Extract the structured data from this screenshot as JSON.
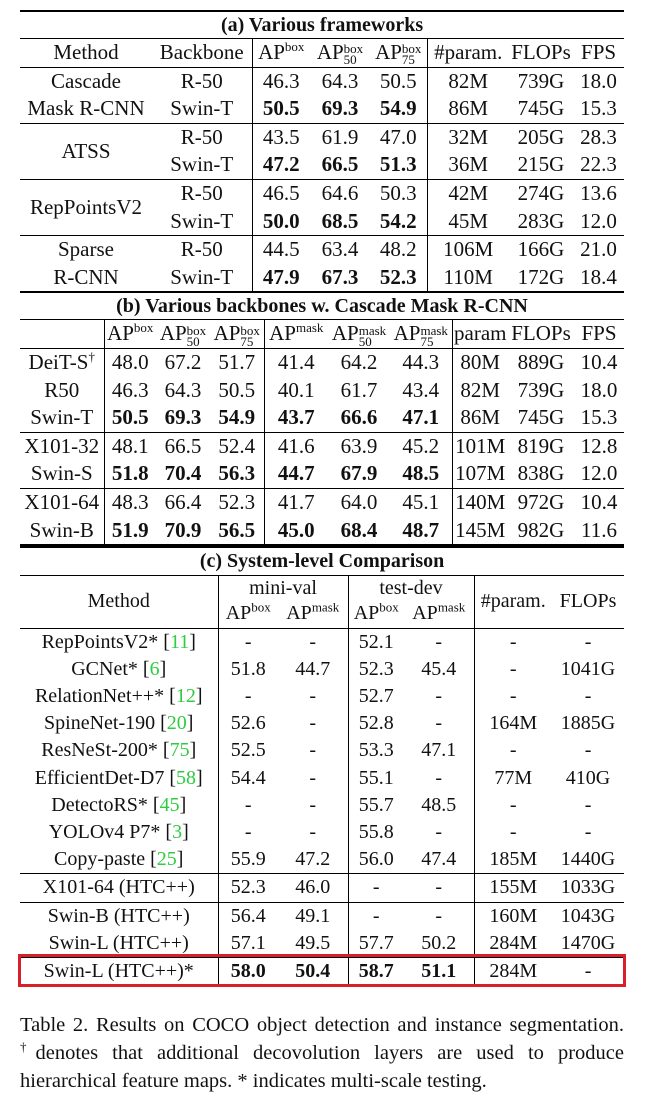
{
  "table_a": {
    "caption": "(a) Various frameworks",
    "headers": {
      "method": "Method",
      "backbone": "Backbone",
      "ap": "AP",
      "ap_sup": "box",
      "ap50": "AP",
      "ap50_sup": "box",
      "ap50_sub": "50",
      "ap75": "AP",
      "ap75_sup": "box",
      "ap75_sub": "75",
      "param": "#param.",
      "flops": "FLOPs",
      "fps": "FPS"
    },
    "groups": [
      {
        "method_lines": [
          "Cascade",
          "Mask R-CNN"
        ],
        "rows": [
          {
            "backbone": "R-50",
            "ap": "46.3",
            "ap50": "64.3",
            "ap75": "50.5",
            "param": "82M",
            "flops": "739G",
            "fps": "18.0"
          },
          {
            "backbone": "Swin-T",
            "ap": "50.5",
            "ap50": "69.3",
            "ap75": "54.9",
            "param": "86M",
            "flops": "745G",
            "fps": "15.3"
          }
        ]
      },
      {
        "method_lines": [
          "ATSS"
        ],
        "rows": [
          {
            "backbone": "R-50",
            "ap": "43.5",
            "ap50": "61.9",
            "ap75": "47.0",
            "param": "32M",
            "flops": "205G",
            "fps": "28.3"
          },
          {
            "backbone": "Swin-T",
            "ap": "47.2",
            "ap50": "66.5",
            "ap75": "51.3",
            "param": "36M",
            "flops": "215G",
            "fps": "22.3"
          }
        ]
      },
      {
        "method_lines": [
          "RepPointsV2"
        ],
        "rows": [
          {
            "backbone": "R-50",
            "ap": "46.5",
            "ap50": "64.6",
            "ap75": "50.3",
            "param": "42M",
            "flops": "274G",
            "fps": "13.6"
          },
          {
            "backbone": "Swin-T",
            "ap": "50.0",
            "ap50": "68.5",
            "ap75": "54.2",
            "param": "45M",
            "flops": "283G",
            "fps": "12.0"
          }
        ]
      },
      {
        "method_lines": [
          "Sparse",
          "R-CNN"
        ],
        "rows": [
          {
            "backbone": "R-50",
            "ap": "44.5",
            "ap50": "63.4",
            "ap75": "48.2",
            "param": "106M",
            "flops": "166G",
            "fps": "21.0"
          },
          {
            "backbone": "Swin-T",
            "ap": "47.9",
            "ap50": "67.3",
            "ap75": "52.3",
            "param": "110M",
            "flops": "172G",
            "fps": "18.4"
          }
        ]
      }
    ]
  },
  "table_b": {
    "caption": "(b) Various backbones w. Cascade Mask R-CNN",
    "headers": {
      "ap": "AP",
      "box": "box",
      "mask": "mask",
      "s50": "50",
      "s75": "75",
      "param": "param",
      "flops": "FLOPs",
      "fps": "FPS"
    },
    "rows": [
      {
        "name": "DeiT-S",
        "mark": "†",
        "apb": "48.0",
        "apb50": "67.2",
        "apb75": "51.7",
        "apm": "41.4",
        "apm50": "64.2",
        "apm75": "44.3",
        "param": "80M",
        "flops": "889G",
        "fps": "10.4"
      },
      {
        "name": "R50",
        "apb": "46.3",
        "apb50": "64.3",
        "apb75": "50.5",
        "apm": "40.1",
        "apm50": "61.7",
        "apm75": "43.4",
        "param": "82M",
        "flops": "739G",
        "fps": "18.0"
      },
      {
        "name": "Swin-T",
        "apb": "50.5",
        "apb50": "69.3",
        "apb75": "54.9",
        "apm": "43.7",
        "apm50": "66.6",
        "apm75": "47.1",
        "param": "86M",
        "flops": "745G",
        "fps": "15.3"
      },
      {
        "name": "X101-32",
        "apb": "48.1",
        "apb50": "66.5",
        "apb75": "52.4",
        "apm": "41.6",
        "apm50": "63.9",
        "apm75": "45.2",
        "param": "101M",
        "flops": "819G",
        "fps": "12.8"
      },
      {
        "name": "Swin-S",
        "apb": "51.8",
        "apb50": "70.4",
        "apb75": "56.3",
        "apm": "44.7",
        "apm50": "67.9",
        "apm75": "48.5",
        "param": "107M",
        "flops": "838G",
        "fps": "12.0"
      },
      {
        "name": "X101-64",
        "apb": "48.3",
        "apb50": "66.4",
        "apb75": "52.3",
        "apm": "41.7",
        "apm50": "64.0",
        "apm75": "45.1",
        "param": "140M",
        "flops": "972G",
        "fps": "10.4"
      },
      {
        "name": "Swin-B",
        "apb": "51.9",
        "apb50": "70.9",
        "apb75": "56.5",
        "apm": "45.0",
        "apm50": "68.4",
        "apm75": "48.7",
        "param": "145M",
        "flops": "982G",
        "fps": "11.6"
      }
    ]
  },
  "table_c": {
    "caption": "(c) System-level Comparison",
    "headers": {
      "method": "Method",
      "minival": "mini-val",
      "testdev": "test-dev",
      "ap": "AP",
      "box": "box",
      "mask": "mask",
      "param": "#param.",
      "flops": "FLOPs"
    },
    "rows": [
      {
        "name": "RepPointsV2*",
        "ref": "11",
        "mv_box": "-",
        "mv_mask": "-",
        "td_box": "52.1",
        "td_mask": "-",
        "param": "-",
        "flops": "-"
      },
      {
        "name": "GCNet*",
        "ref": "6",
        "mv_box": "51.8",
        "mv_mask": "44.7",
        "td_box": "52.3",
        "td_mask": "45.4",
        "param": "-",
        "flops": "1041G"
      },
      {
        "name": "RelationNet++*",
        "ref": "12",
        "mv_box": "-",
        "mv_mask": "-",
        "td_box": "52.7",
        "td_mask": "-",
        "param": "-",
        "flops": "-"
      },
      {
        "name": "SpineNet-190",
        "ref": "20",
        "mv_box": "52.6",
        "mv_mask": "-",
        "td_box": "52.8",
        "td_mask": "-",
        "param": "164M",
        "flops": "1885G"
      },
      {
        "name": "ResNeSt-200*",
        "ref": "75",
        "mv_box": "52.5",
        "mv_mask": "-",
        "td_box": "53.3",
        "td_mask": "47.1",
        "param": "-",
        "flops": "-"
      },
      {
        "name": "EfficientDet-D7",
        "ref": "58",
        "mv_box": "54.4",
        "mv_mask": "-",
        "td_box": "55.1",
        "td_mask": "-",
        "param": "77M",
        "flops": "410G"
      },
      {
        "name": "DetectoRS*",
        "ref": "45",
        "mv_box": "-",
        "mv_mask": "-",
        "td_box": "55.7",
        "td_mask": "48.5",
        "param": "-",
        "flops": "-"
      },
      {
        "name": "YOLOv4 P7*",
        "ref": "3",
        "mv_box": "-",
        "mv_mask": "-",
        "td_box": "55.8",
        "td_mask": "-",
        "param": "-",
        "flops": "-"
      },
      {
        "name": "Copy-paste",
        "ref": "25",
        "mv_box": "55.9",
        "mv_mask": "47.2",
        "td_box": "56.0",
        "td_mask": "47.4",
        "param": "185M",
        "flops": "1440G"
      },
      {
        "name": "X101-64 (HTC++)",
        "mv_box": "52.3",
        "mv_mask": "46.0",
        "td_box": "-",
        "td_mask": "-",
        "param": "155M",
        "flops": "1033G"
      },
      {
        "name": "Swin-B (HTC++)",
        "mv_box": "56.4",
        "mv_mask": "49.1",
        "td_box": "-",
        "td_mask": "-",
        "param": "160M",
        "flops": "1043G"
      },
      {
        "name": "Swin-L (HTC++)",
        "mv_box": "57.1",
        "mv_mask": "49.5",
        "td_box": "57.7",
        "td_mask": "50.2",
        "param": "284M",
        "flops": "1470G"
      },
      {
        "name": "Swin-L (HTC++)*",
        "mv_box": "58.0",
        "mv_mask": "50.4",
        "td_box": "58.7",
        "td_mask": "51.1",
        "param": "284M",
        "flops": "-"
      }
    ]
  },
  "caption": {
    "part1": "Table 2. Results on COCO object detection and instance segmentation.",
    "dagger": "†",
    "part2": "denotes that additional decovolution layers are used to produce hierarchical feature maps. * indicates multi-scale testing."
  },
  "colors": {
    "highlight": "#d81f2a",
    "citation": "#2ecc40"
  }
}
